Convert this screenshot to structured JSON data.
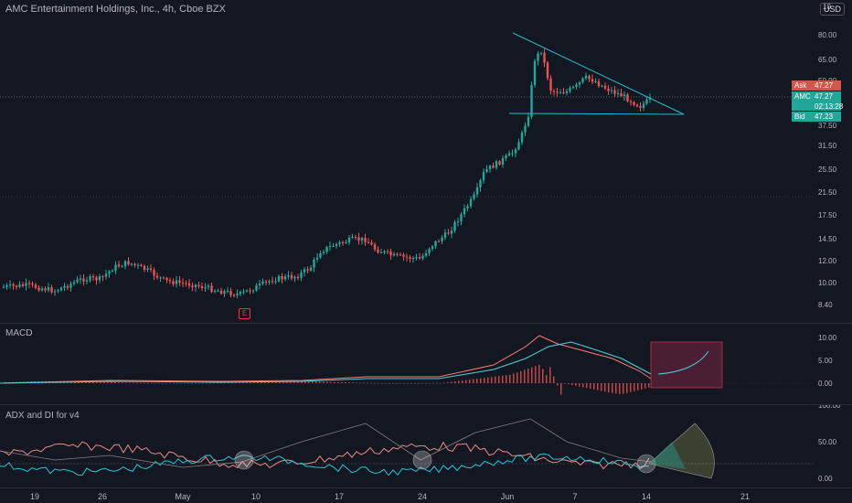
{
  "chart": {
    "title": "AMC Entertainment Holdings, Inc., 4h, Cboe BZX",
    "currency": "USD",
    "top_axis_label": "10",
    "y_ticks": [
      "80.00",
      "65.00",
      "50.00",
      "37.50",
      "31.50",
      "25.50",
      "21.50",
      "17.50",
      "14.50",
      "12.00",
      "10.00",
      "8.40"
    ],
    "ask": {
      "label": "Ask",
      "value": "47.27"
    },
    "last": {
      "label": "AMC",
      "value": "47.27",
      "countdown": "02:13:28"
    },
    "bid": {
      "label": "Bid",
      "value": "47.23"
    },
    "earnings_marker": "E",
    "colors": {
      "up": "#26a69a",
      "down": "#ef5350",
      "pattern": "#22b8cf"
    }
  },
  "macd": {
    "label": "MACD",
    "y_ticks": [
      "10.00",
      "5.00",
      "0.00"
    ]
  },
  "adx": {
    "label": "ADX and DI for v4",
    "y_ticks": [
      "100.00",
      "50.00",
      "0.00"
    ]
  },
  "x_axis": {
    "labels": [
      "19",
      "26",
      "May",
      "10",
      "17",
      "24",
      "Jun",
      "7",
      "14",
      "21"
    ]
  }
}
